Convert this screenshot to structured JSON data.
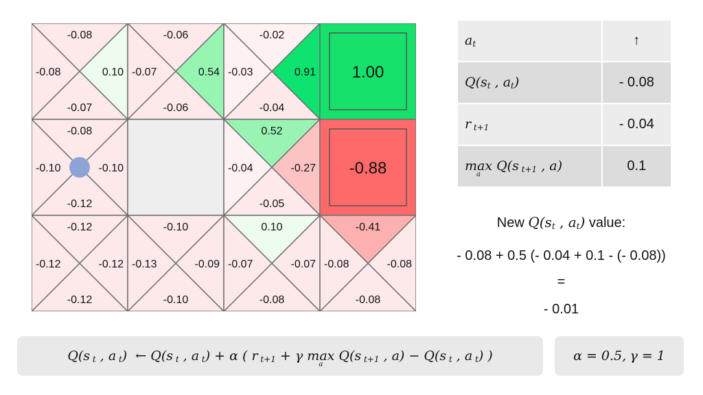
{
  "grid": {
    "rows": [
      [
        {
          "type": "q",
          "values": {
            "up": "-0.08",
            "right": "0.10",
            "down": "-0.07",
            "left": "-0.08"
          },
          "colors": {
            "up": "#fde9e9",
            "right": "#eefcee",
            "down": "#fde9e9",
            "left": "#fde9e9"
          }
        },
        {
          "type": "q",
          "values": {
            "up": "-0.06",
            "right": "0.54",
            "down": "-0.06",
            "left": "-0.07"
          },
          "colors": {
            "up": "#fde9e9",
            "right": "#97f5b2",
            "down": "#fde9e9",
            "left": "#fde9e9"
          }
        },
        {
          "type": "q",
          "values": {
            "up": "-0.02",
            "right": "0.91",
            "down": "-0.04",
            "left": "-0.03"
          },
          "colors": {
            "up": "#fef1f1",
            "right": "#0de36e",
            "down": "#fde9e9",
            "left": "#fef1f1"
          }
        },
        {
          "type": "terminal",
          "value": "1.00",
          "color": "#16e26b"
        }
      ],
      [
        {
          "type": "q",
          "agent": true,
          "values": {
            "up": "-0.08",
            "right": "-0.10",
            "down": "-0.12",
            "left": "-0.10"
          },
          "colors": {
            "up": "#fde9e9",
            "right": "#fde9e9",
            "down": "#fde9e9",
            "left": "#fde9e9"
          }
        },
        {
          "type": "wall",
          "color": "#eeeeee"
        },
        {
          "type": "q",
          "values": {
            "up": "0.52",
            "right": "-0.27",
            "down": "-0.05",
            "left": "-0.04"
          },
          "colors": {
            "up": "#99f4b4",
            "right": "#fcc3c3",
            "down": "#fde9e9",
            "left": "#fef1f1"
          }
        },
        {
          "type": "terminal",
          "value": "-0.88",
          "color": "#fe6a6a"
        }
      ],
      [
        {
          "type": "q",
          "values": {
            "up": "-0.12",
            "right": "-0.12",
            "down": "-0.12",
            "left": "-0.12"
          },
          "colors": {
            "up": "#fde9e9",
            "right": "#fde9e9",
            "down": "#fde9e9",
            "left": "#fde9e9"
          }
        },
        {
          "type": "q",
          "values": {
            "up": "-0.10",
            "right": "-0.09",
            "down": "-0.10",
            "left": "-0.13"
          },
          "colors": {
            "up": "#fde9e9",
            "right": "#fde9e9",
            "down": "#fde9e9",
            "left": "#fde9e9"
          }
        },
        {
          "type": "q",
          "values": {
            "up": "0.10",
            "right": "-0.07",
            "down": "-0.08",
            "left": "-0.07"
          },
          "colors": {
            "up": "#eefcee",
            "right": "#fde9e9",
            "down": "#fde9e9",
            "left": "#fde9e9"
          }
        },
        {
          "type": "q",
          "values": {
            "up": "-0.41",
            "right": "-0.08",
            "down": "-0.08",
            "left": "-0.08"
          },
          "colors": {
            "up": "#fdb0b0",
            "right": "#fde9e9",
            "down": "#fde9e9",
            "left": "#fde9e9"
          }
        }
      ]
    ],
    "agent_color": "#8ea4d6"
  },
  "table": {
    "action_label": "a",
    "action_sub": "t",
    "action_value": "↑",
    "q_value": "- 0.08",
    "reward_value": "- 0.04",
    "maxq_value": "0.1"
  },
  "calc": {
    "new_q_prefix": "New",
    "new_q_suffix": "value:",
    "expression": "- 0.08 + 0.5 (- 0.04 + 0.1 - (- 0.08))",
    "equals": "=",
    "result": "- 0.01"
  },
  "params": {
    "alpha": "α = 0.5,",
    "gamma": "γ = 1"
  }
}
